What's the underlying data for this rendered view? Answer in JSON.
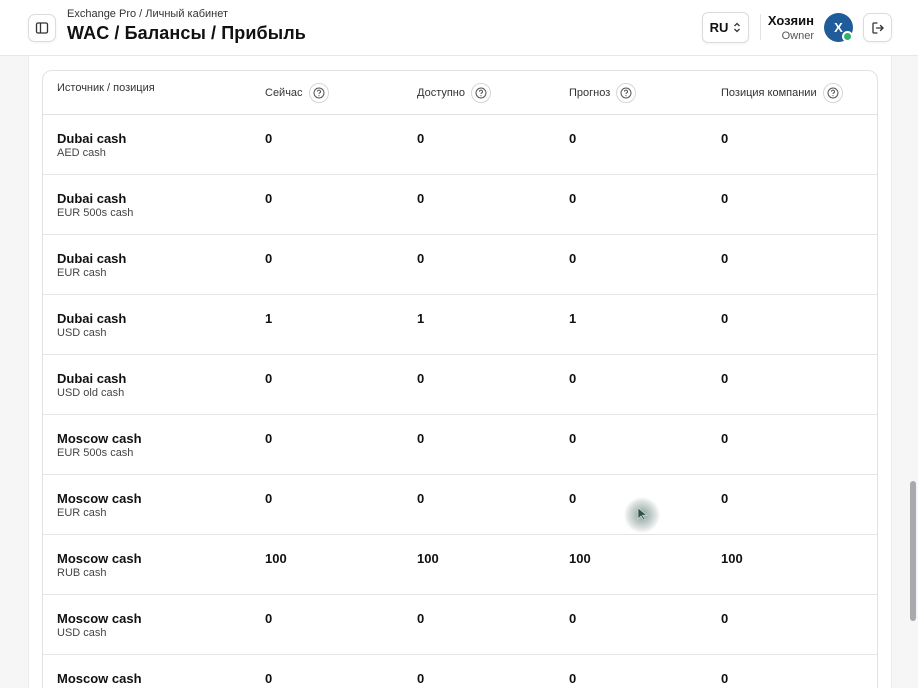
{
  "header": {
    "breadcrumb": "Exchange Pro / Личный кабинет",
    "title": "WAC / Балансы / Прибыль",
    "lang": "RU",
    "user_name": "Хозяин",
    "user_role": "Owner",
    "avatar_letter": "X",
    "icons": {
      "sidebar": "sidebar-toggle-icon",
      "lang": "chevron-updown-icon",
      "logout": "logout-icon"
    }
  },
  "table": {
    "columns": [
      "Источник / позиция",
      "Сейчас",
      "Доступно",
      "Прогноз",
      "Позиция компании"
    ],
    "rows": [
      {
        "name": "Dubai cash",
        "sub": "AED cash",
        "now": "0",
        "available": "0",
        "forecast": "0",
        "company": "0"
      },
      {
        "name": "Dubai cash",
        "sub": "EUR 500s cash",
        "now": "0",
        "available": "0",
        "forecast": "0",
        "company": "0"
      },
      {
        "name": "Dubai cash",
        "sub": "EUR cash",
        "now": "0",
        "available": "0",
        "forecast": "0",
        "company": "0"
      },
      {
        "name": "Dubai cash",
        "sub": "USD cash",
        "now": "1",
        "available": "1",
        "forecast": "1",
        "company": "0"
      },
      {
        "name": "Dubai cash",
        "sub": "USD old cash",
        "now": "0",
        "available": "0",
        "forecast": "0",
        "company": "0"
      },
      {
        "name": "Moscow cash",
        "sub": "EUR 500s cash",
        "now": "0",
        "available": "0",
        "forecast": "0",
        "company": "0"
      },
      {
        "name": "Moscow cash",
        "sub": "EUR cash",
        "now": "0",
        "available": "0",
        "forecast": "0",
        "company": "0"
      },
      {
        "name": "Moscow cash",
        "sub": "RUB cash",
        "now": "100",
        "available": "100",
        "forecast": "100",
        "company": "100"
      },
      {
        "name": "Moscow cash",
        "sub": "USD cash",
        "now": "0",
        "available": "0",
        "forecast": "0",
        "company": "0"
      },
      {
        "name": "Moscow cash",
        "sub": "",
        "now": "0",
        "available": "0",
        "forecast": "0",
        "company": "0"
      }
    ]
  },
  "colors": {
    "avatar": "#1f5c99",
    "status_online": "#2fb36a",
    "border": "#e2e2e6"
  }
}
